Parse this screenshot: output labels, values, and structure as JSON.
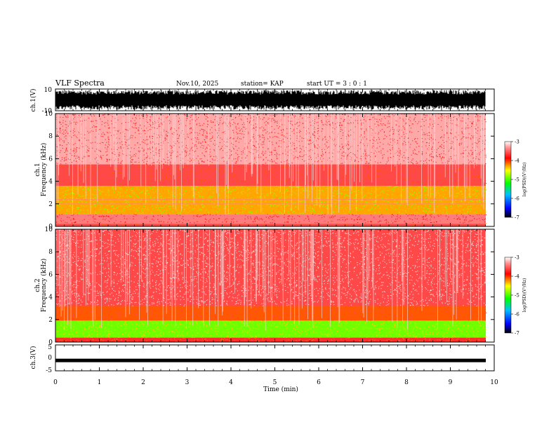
{
  "chart_data": [
    {
      "type": "line",
      "panel": "ch1-waveform",
      "ylabel": "ch.1(V)",
      "ylim": [
        -10,
        10
      ],
      "yticks": [
        "10",
        "-10"
      ],
      "xlim": [
        0,
        10
      ],
      "description_values": "dense noise waveform filling roughly -9 to +9 V"
    },
    {
      "type": "heatmap",
      "panel": "ch1-spectrogram",
      "ylabel_line1": "ch.1",
      "ylabel_line2": "Frequency (kHz)",
      "ylim": [
        0,
        10
      ],
      "yticks": [
        "0",
        "2",
        "4",
        "6",
        "8",
        "10"
      ],
      "bands": [
        {
          "from": 0,
          "to": 0.3,
          "level": -3.6
        },
        {
          "from": 0.3,
          "to": 1.1,
          "level": -3.4
        },
        {
          "from": 1.1,
          "to": 3.6,
          "level": -4.3
        },
        {
          "from": 3.6,
          "to": 5.5,
          "level": -3.6
        },
        {
          "from": 5.5,
          "to": 10,
          "level": -3.25
        }
      ],
      "colorbar": {
        "min": -7,
        "max": -3,
        "ticks": [
          "-3",
          "-4",
          "-5",
          "-6",
          "-7"
        ],
        "label": "log(PSD)(V²/Hz)"
      }
    },
    {
      "type": "heatmap",
      "panel": "ch2-spectrogram",
      "ylabel_line1": "ch.2",
      "ylabel_line2": "Frequency (kHz)",
      "ylim": [
        0,
        10
      ],
      "yticks": [
        "0",
        "2",
        "4",
        "6",
        "8",
        "10"
      ],
      "bands": [
        {
          "from": 0,
          "to": 0.4,
          "level": -3.7
        },
        {
          "from": 0.4,
          "to": 1.9,
          "level": -4.9
        },
        {
          "from": 1.9,
          "to": 3.2,
          "level": -4.1
        },
        {
          "from": 3.2,
          "to": 10,
          "level": -3.6
        }
      ],
      "colorbar": {
        "min": -7,
        "max": -3,
        "ticks": [
          "-3",
          "-4",
          "-5",
          "-6",
          "-7"
        ],
        "label": "log(PSD)(V²/Hz)"
      }
    },
    {
      "type": "line",
      "panel": "ch3-waveform",
      "ylabel": "ch.3(V)",
      "ylim": [
        -5,
        5
      ],
      "yticks": [
        "5",
        "0",
        "-5"
      ],
      "level": -1,
      "xlabel": "Time (min)",
      "xlim": [
        0,
        10
      ],
      "xticks": [
        "0",
        "1",
        "2",
        "3",
        "4",
        "5",
        "6",
        "7",
        "8",
        "9",
        "10"
      ]
    }
  ],
  "header": {
    "title": "VLF Spectra",
    "date": "Nov.10, 2025",
    "station": "station= KAP",
    "start": "start UT =  3 : 0 : 1"
  },
  "colors": {
    "red": "#ff0000",
    "yellow": "#ffff00",
    "green": "#00ff00",
    "cyan": "#00ffff",
    "blue": "#0000ff",
    "black": "#000000"
  }
}
